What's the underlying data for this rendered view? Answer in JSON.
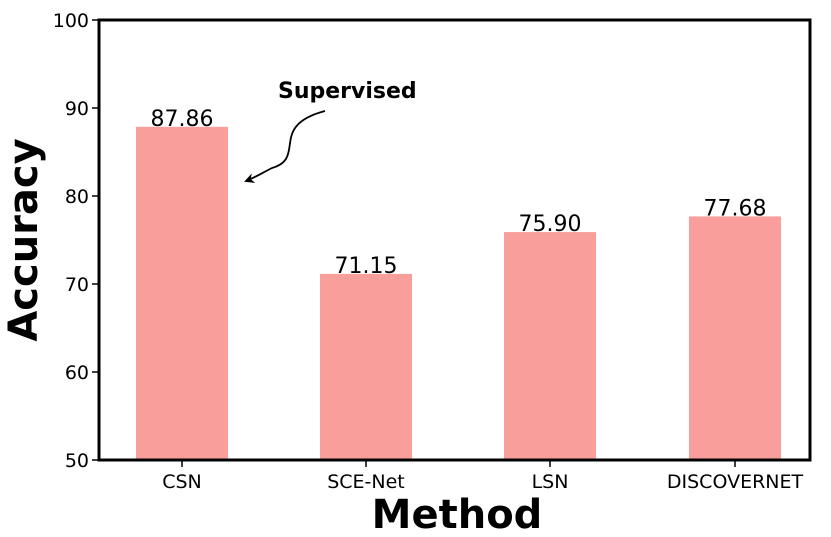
{
  "chart_data": {
    "type": "bar",
    "categories": [
      "CSN",
      "SCE-Net",
      "LSN",
      "DISCOVERNET"
    ],
    "values": [
      87.86,
      71.15,
      75.9,
      77.68
    ],
    "value_labels": [
      "87.86",
      "71.15",
      "75.90",
      "77.68"
    ],
    "xlabel": "Method",
    "ylabel": "Accuracy",
    "ylim": [
      50,
      100
    ],
    "yticks": [
      50,
      60,
      70,
      80,
      90,
      100
    ],
    "bar_color": "#fa9e9c",
    "grid": false,
    "annotation": {
      "text": "Supervised",
      "target_category": "CSN"
    }
  }
}
